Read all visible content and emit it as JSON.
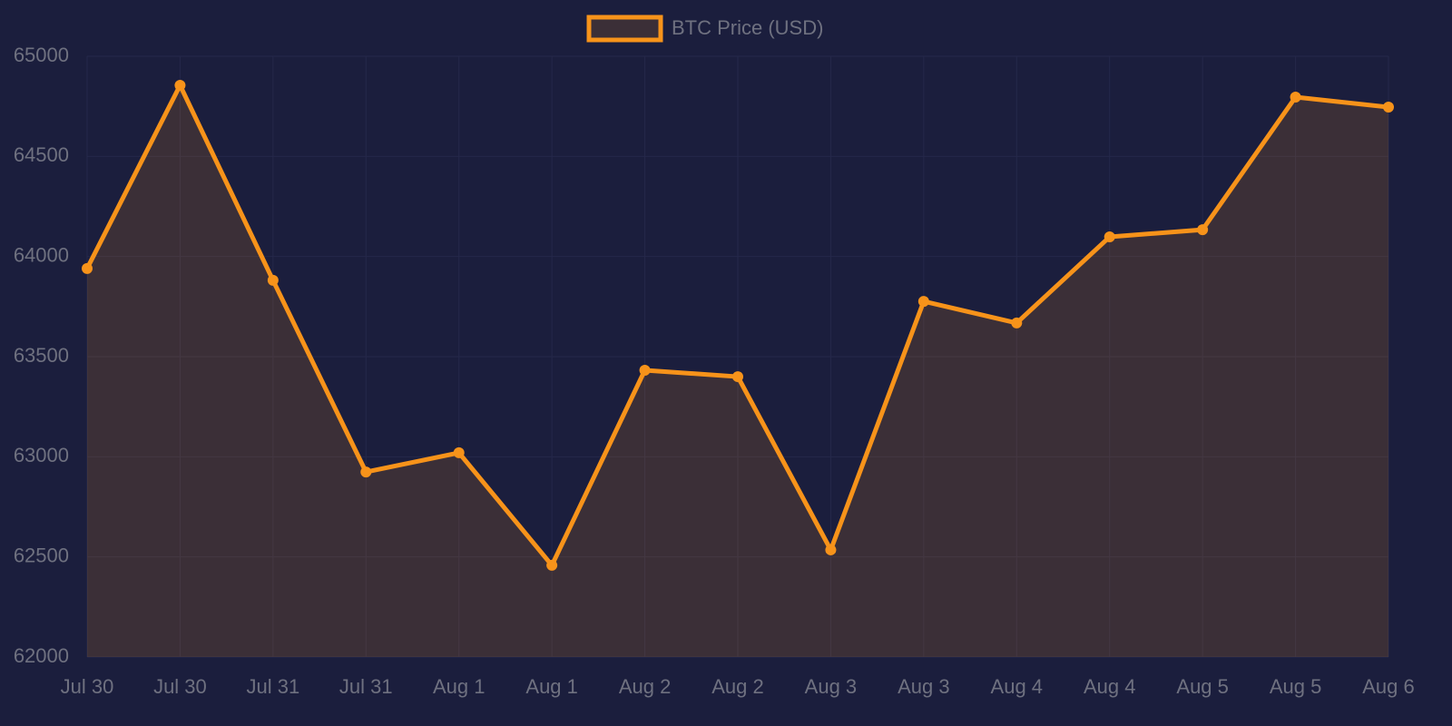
{
  "chart_data": {
    "type": "line",
    "categories": [
      "Jul 30",
      "Jul 30",
      "Jul 31",
      "Jul 31",
      "Aug 1",
      "Aug 1",
      "Aug 2",
      "Aug 2",
      "Aug 3",
      "Aug 3",
      "Aug 4",
      "Aug 4",
      "Aug 5",
      "Aug 5",
      "Aug 6"
    ],
    "series": [
      {
        "name": "BTC Price (USD)",
        "color": "#f7931a",
        "fill": "rgba(247,147,26,0.15)",
        "values": [
          63940,
          64855,
          63881,
          62924,
          63020,
          62458,
          63432,
          63400,
          62535,
          63776,
          63668,
          64098,
          64134,
          64796,
          64746
        ]
      }
    ],
    "ylim": [
      62000,
      65000
    ],
    "yticks": [
      62000,
      62500,
      63000,
      63500,
      64000,
      64500,
      65000
    ],
    "grid": true,
    "legend": "top"
  }
}
